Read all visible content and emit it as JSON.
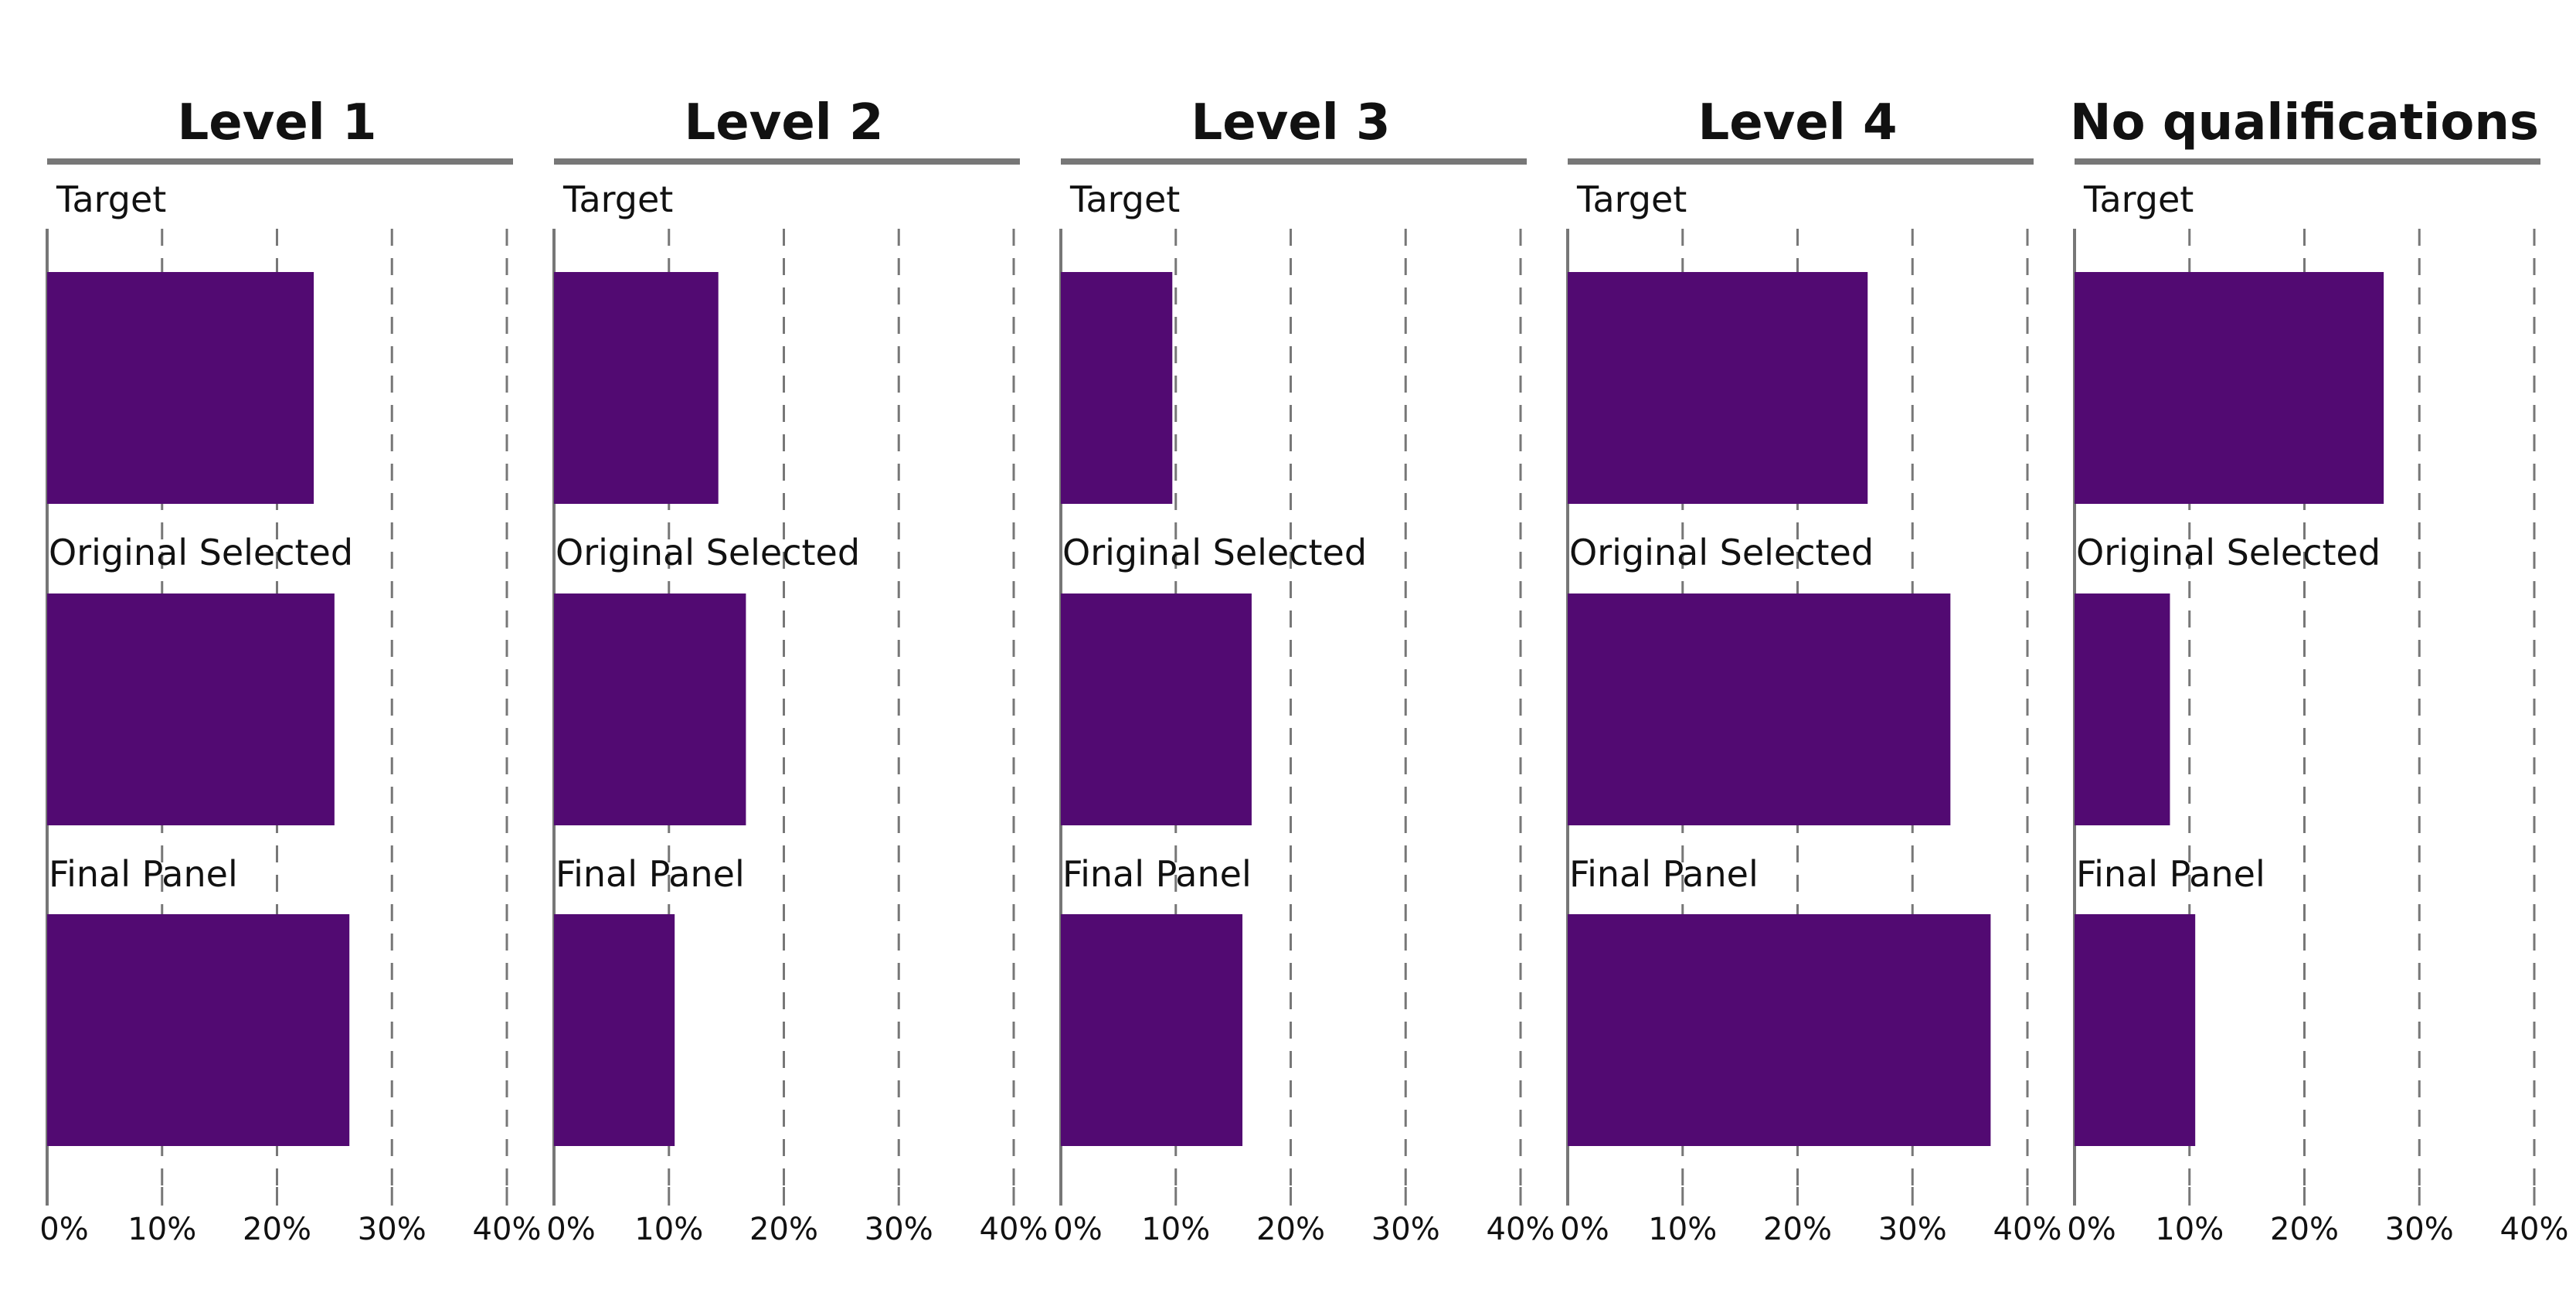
{
  "chart_data": {
    "type": "bar",
    "orientation": "horizontal",
    "facets": [
      "Level 1",
      "Level 2",
      "Level 3",
      "Level 4",
      "No qualifications"
    ],
    "categories": [
      "Target",
      "Original Selected",
      "Final Panel"
    ],
    "values": [
      [
        23.2,
        25.0,
        26.3
      ],
      [
        14.3,
        16.7,
        10.5
      ],
      [
        9.7,
        16.6,
        15.8
      ],
      [
        26.1,
        33.3,
        36.8
      ],
      [
        26.9,
        8.3,
        10.5
      ]
    ],
    "xlim": [
      0,
      40
    ],
    "x_ticks": [
      "0%",
      "10%",
      "20%",
      "30%",
      "40%"
    ],
    "x_tick_values": [
      0,
      10,
      20,
      30,
      40
    ],
    "grid": "vertical dashed",
    "bar_color": "#520a72",
    "header_rule_color": "#777777",
    "axis_color": "#777777"
  }
}
